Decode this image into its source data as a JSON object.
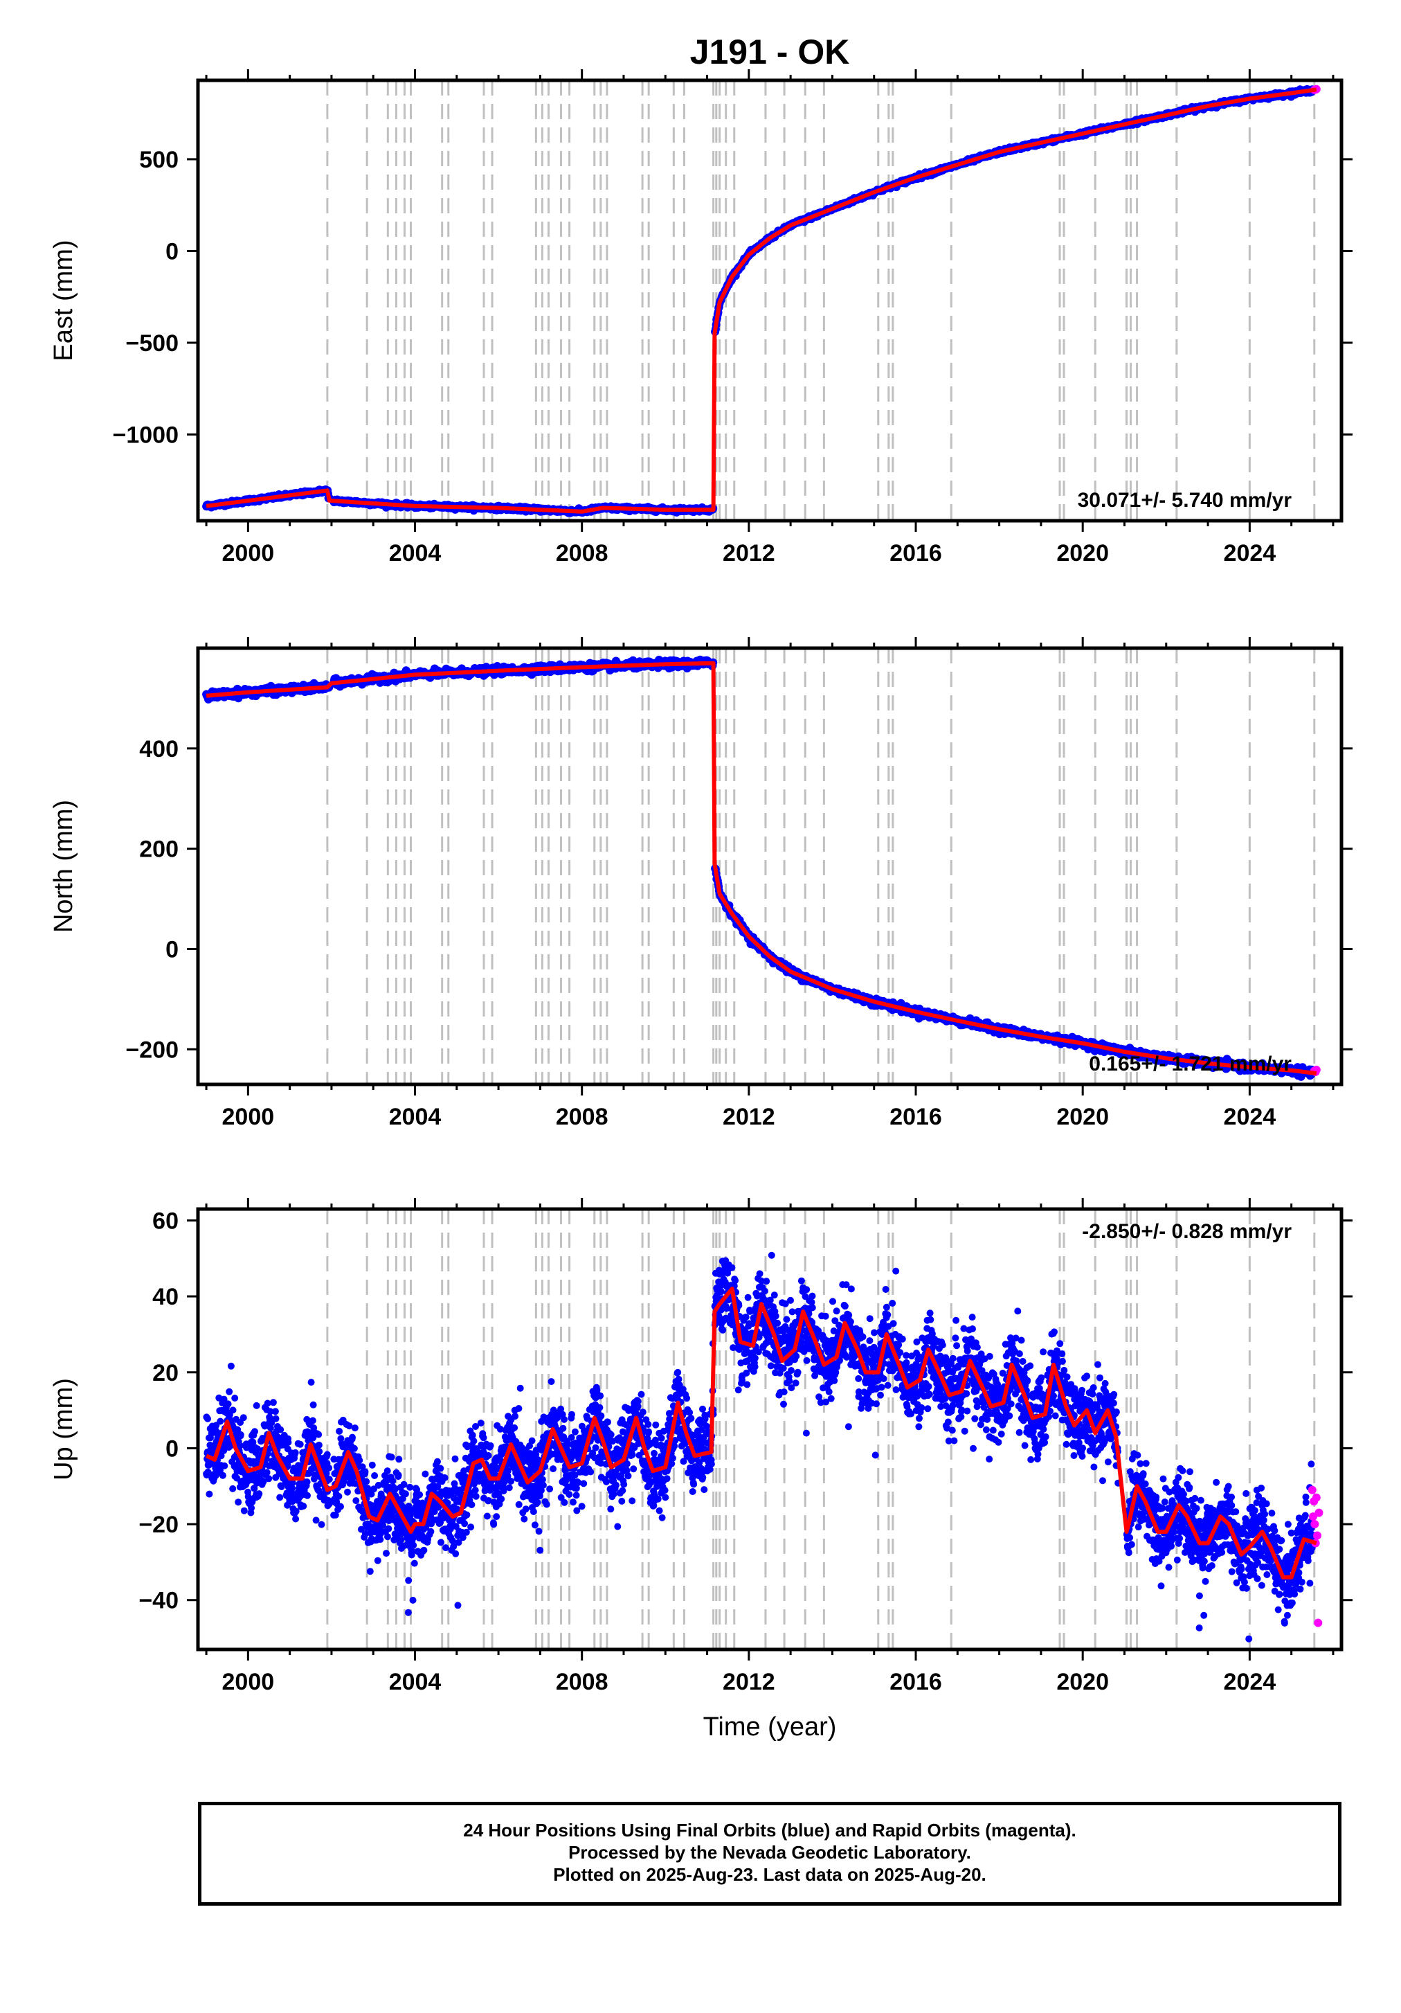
{
  "figure": {
    "title": "J191 - OK",
    "xlabel": "Time (year)",
    "footer": [
      "24 Hour Positions Using Final Orbits (blue) and Rapid Orbits (magenta).",
      "Processed by the Nevada Geodetic Laboratory.",
      "Plotted on 2025-Aug-23. Last data on 2025-Aug-20."
    ],
    "colors": {
      "final": "#0000ff",
      "rapid": "#ff00ff",
      "model": "#ff0000",
      "event_lines": "#c0c0c0"
    }
  },
  "chart_data": [
    {
      "type": "scatter",
      "component": "east",
      "ylabel": "East (mm)",
      "xlim": [
        1998.8,
        2026.2
      ],
      "ylim": [
        -1470,
        930
      ],
      "xticks": [
        2000,
        2004,
        2008,
        2012,
        2016,
        2020,
        2024
      ],
      "yticks": [
        -1000,
        -500,
        0,
        500
      ],
      "ytick_labels": [
        "−1000",
        "−500",
        "0",
        "500"
      ],
      "rate_label": "30.071+/- 5.740 mm/yr",
      "rate_label_position": "bottom-right",
      "model": {
        "x": [
          1999.0,
          2001.9,
          2001.95,
          2004,
          2006,
          2008,
          2008.5,
          2010,
          2011.15,
          2011.18,
          2011.3,
          2011.6,
          2012,
          2012.5,
          2013,
          2014,
          2015,
          2016,
          2017,
          2018,
          2019,
          2020,
          2021,
          2022,
          2023,
          2024,
          2025,
          2025.6
        ],
        "y": [
          -1390,
          -1305,
          -1360,
          -1390,
          -1400,
          -1420,
          -1400,
          -1410,
          -1410,
          -450,
          -280,
          -140,
          -20,
          70,
          140,
          230,
          320,
          400,
          470,
          540,
          590,
          640,
          690,
          740,
          790,
          830,
          860,
          880
        ]
      },
      "rapid": {
        "x": [
          2025.55,
          2025.58,
          2025.6
        ],
        "y": [
          878,
          880,
          882
        ]
      }
    },
    {
      "type": "scatter",
      "component": "north",
      "ylabel": "North (mm)",
      "xlim": [
        1998.8,
        2026.2
      ],
      "ylim": [
        -270,
        600
      ],
      "xticks": [
        2000,
        2004,
        2008,
        2012,
        2016,
        2020,
        2024
      ],
      "yticks": [
        -200,
        0,
        200,
        400
      ],
      "ytick_labels": [
        "−200",
        "0",
        "200",
        "400"
      ],
      "rate_label": "0.165+/- 1.721 mm/yr",
      "rate_label_position": "bottom-right",
      "model": {
        "x": [
          1999.0,
          2000,
          2001.9,
          2002,
          2004,
          2006,
          2008,
          2010,
          2011.15,
          2011.18,
          2011.3,
          2011.6,
          2012,
          2012.5,
          2013,
          2014,
          2015,
          2016,
          2017,
          2018,
          2019,
          2020,
          2021,
          2022,
          2023,
          2024,
          2025,
          2025.6
        ],
        "y": [
          505,
          512,
          522,
          530,
          547,
          555,
          562,
          568,
          570,
          170,
          110,
          70,
          25,
          -15,
          -45,
          -80,
          -105,
          -125,
          -143,
          -160,
          -175,
          -188,
          -205,
          -218,
          -228,
          -236,
          -242,
          -248
        ]
      },
      "rapid": {
        "x": [
          2025.55,
          2025.58,
          2025.6
        ],
        "y": [
          -243,
          -245,
          -241
        ]
      }
    },
    {
      "type": "scatter",
      "component": "up",
      "ylabel": "Up (mm)",
      "xlim": [
        1998.8,
        2026.2
      ],
      "ylim": [
        -53,
        63
      ],
      "xticks": [
        2000,
        2004,
        2008,
        2012,
        2016,
        2020,
        2024
      ],
      "yticks": [
        -40,
        -20,
        0,
        20,
        40,
        60
      ],
      "ytick_labels": [
        "−40",
        "−20",
        "0",
        "20",
        "40",
        "60"
      ],
      "rate_label": "-2.850+/- 0.828 mm/yr",
      "rate_label_position": "top-right",
      "model": {
        "x": [
          1999.0,
          1999.2,
          1999.5,
          1999.7,
          2000.0,
          2000.3,
          2000.5,
          2000.7,
          2001.0,
          2001.3,
          2001.5,
          2001.7,
          2001.9,
          2002.1,
          2002.4,
          2002.6,
          2002.9,
          2003.1,
          2003.4,
          2003.6,
          2003.9,
          2004.0,
          2004.2,
          2004.4,
          2004.6,
          2004.9,
          2005.1,
          2005.4,
          2005.6,
          2005.8,
          2006.0,
          2006.3,
          2006.5,
          2006.7,
          2007.0,
          2007.3,
          2007.5,
          2007.7,
          2008.0,
          2008.3,
          2008.5,
          2008.7,
          2009.0,
          2009.3,
          2009.5,
          2009.7,
          2010.0,
          2010.3,
          2010.5,
          2010.7,
          2011.1,
          2011.18,
          2011.3,
          2011.6,
          2011.8,
          2012.1,
          2012.3,
          2012.6,
          2012.8,
          2013.1,
          2013.3,
          2013.6,
          2013.8,
          2014.1,
          2014.3,
          2014.6,
          2014.8,
          2015.1,
          2015.3,
          2015.6,
          2015.8,
          2016.1,
          2016.3,
          2016.6,
          2016.8,
          2017.1,
          2017.3,
          2017.6,
          2017.8,
          2018.1,
          2018.3,
          2018.6,
          2018.8,
          2019.1,
          2019.3,
          2019.6,
          2019.8,
          2020.1,
          2020.3,
          2020.6,
          2020.8,
          2021.05,
          2021.1,
          2021.3,
          2021.5,
          2021.8,
          2022.0,
          2022.3,
          2022.5,
          2022.8,
          2023.0,
          2023.3,
          2023.5,
          2023.8,
          2024.0,
          2024.3,
          2024.5,
          2024.8,
          2025.0,
          2025.3,
          2025.6
        ],
        "y": [
          -2,
          -3,
          7,
          0,
          -6,
          -5,
          4,
          -2,
          -8,
          -8,
          1,
          -5,
          -11,
          -10,
          -1,
          -6,
          -18,
          -19,
          -12,
          -16,
          -22,
          -20,
          -20,
          -12,
          -14,
          -18,
          -17,
          -4,
          -3,
          -8,
          -8,
          1,
          -4,
          -9,
          -6,
          5,
          0,
          -5,
          -4,
          8,
          2,
          -5,
          -3,
          8,
          0,
          -6,
          -5,
          12,
          4,
          -2,
          -1,
          36,
          38,
          42,
          28,
          27,
          38,
          30,
          23,
          26,
          36,
          28,
          22,
          24,
          33,
          26,
          20,
          20,
          30,
          22,
          16,
          18,
          26,
          19,
          14,
          15,
          23,
          16,
          11,
          12,
          22,
          14,
          8,
          9,
          22,
          11,
          6,
          10,
          4,
          10,
          3,
          -22,
          -20,
          -10,
          -14,
          -22,
          -22,
          -15,
          -18,
          -25,
          -25,
          -18,
          -20,
          -28,
          -26,
          -22,
          -26,
          -34,
          -34,
          -24,
          -25
        ]
      },
      "rapid": {
        "x": [
          2025.5,
          2025.52,
          2025.54,
          2025.56,
          2025.58,
          2025.6,
          2025.62,
          2025.64,
          2025.66
        ],
        "y": [
          -11,
          -18,
          -14,
          -20,
          -25,
          -13,
          -23,
          -46,
          -17
        ]
      }
    }
  ],
  "event_lines_x": [
    2001.9,
    2002.85,
    2003.35,
    2003.55,
    2003.75,
    2003.9,
    2004.65,
    2004.8,
    2005.65,
    2005.85,
    2006.9,
    2007.05,
    2007.2,
    2007.5,
    2007.7,
    2008.3,
    2008.45,
    2008.6,
    2009.45,
    2009.6,
    2010.2,
    2010.45,
    2011.15,
    2011.22,
    2011.3,
    2011.45,
    2011.65,
    2012.4,
    2012.85,
    2013.35,
    2013.8,
    2015.1,
    2015.35,
    2015.45,
    2016.85,
    2019.45,
    2019.55,
    2020.3,
    2021.05,
    2021.15,
    2021.3,
    2022.25,
    2024.0,
    2025.55
  ]
}
